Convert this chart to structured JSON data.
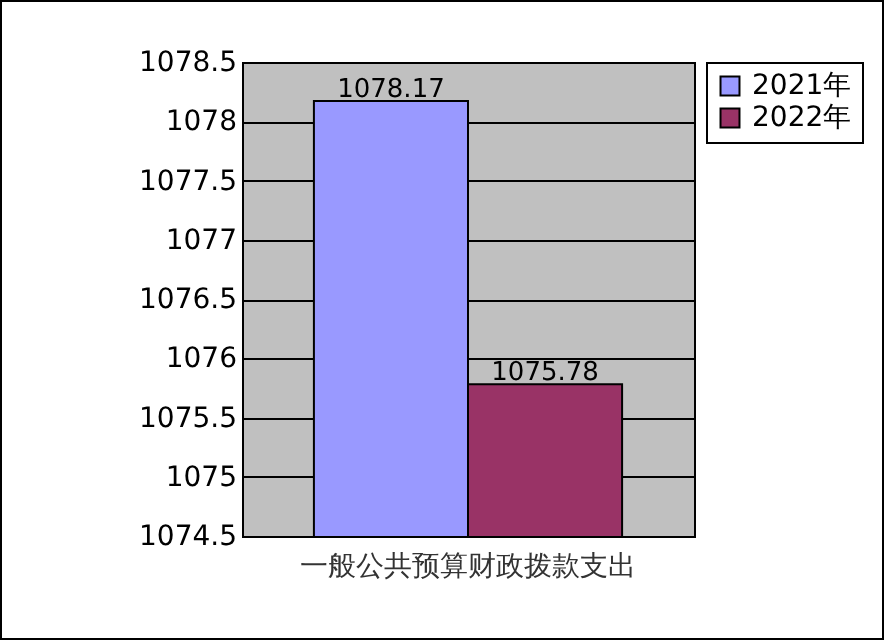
{
  "chart_data": {
    "type": "bar",
    "categories": [
      "一般公共预算财政拨款支出"
    ],
    "series": [
      {
        "name": "2021年",
        "color": "#9999ff",
        "values": [
          1078.17
        ]
      },
      {
        "name": "2022年",
        "color": "#993366",
        "values": [
          1075.78
        ]
      }
    ],
    "ylim": [
      1074.5,
      1078.5
    ],
    "yticks": [
      1074.5,
      1075,
      1075.5,
      1076,
      1076.5,
      1077,
      1077.5,
      1078,
      1078.5
    ],
    "grid": "y",
    "legend": "right",
    "data_labels": true
  }
}
